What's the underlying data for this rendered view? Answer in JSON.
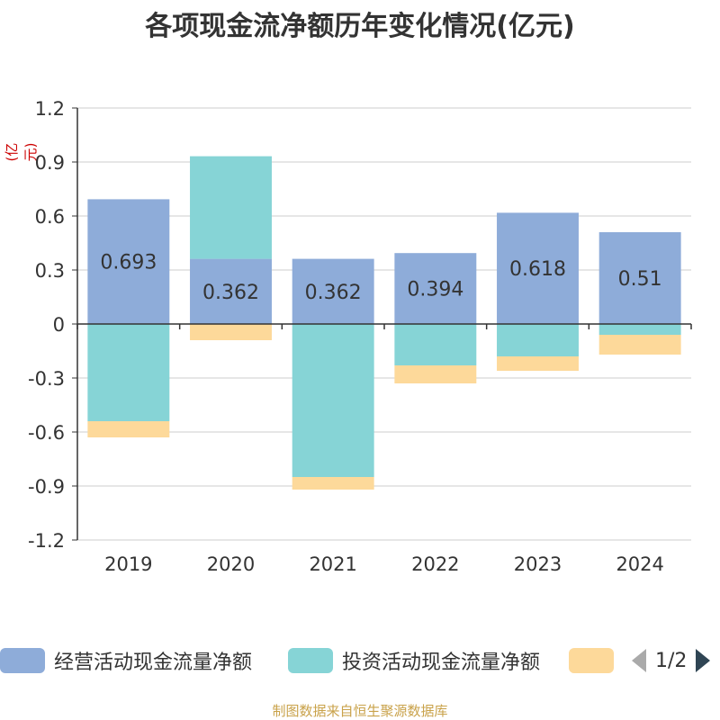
{
  "title": "各项现金流净额历年变化情况(亿元)",
  "colors": {
    "operating": "#8eacd9",
    "investing": "#86d4d6",
    "financing": "#fdd99a",
    "axis": "#333333",
    "grid": "#cccccc",
    "unit_label": "#cc0000",
    "footer": "#c9a24a",
    "pager_disabled": "#aaaaaa",
    "pager_active": "#2f4554"
  },
  "legend": {
    "items": [
      {
        "label": "经营活动现金流量净额",
        "color": "#8eacd9"
      },
      {
        "label": "投资活动现金流量净额",
        "color": "#86d4d6"
      },
      {
        "label": "",
        "color": "#fdd99a"
      }
    ],
    "page_text": "1/2",
    "prev_icon": "triangle-left-icon",
    "next_icon": "triangle-right-icon"
  },
  "footer": "制图数据来自恒生聚源数据库",
  "chart_data": {
    "type": "bar",
    "stacked": true,
    "title": "各项现金流净额历年变化情况(亿元)",
    "ylabel": "(亿元)",
    "categories": [
      "2019",
      "2020",
      "2021",
      "2022",
      "2023",
      "2024"
    ],
    "ylim": [
      -1.2,
      1.2
    ],
    "yticks": [
      "1.2",
      "0.9",
      "0.6",
      "0.3",
      "0",
      "-0.3",
      "-0.6",
      "-0.9",
      "-1.2"
    ],
    "grid": true,
    "legend_position": "bottom",
    "series": [
      {
        "name": "经营活动现金流量净额",
        "values": [
          0.693,
          0.362,
          0.362,
          0.394,
          0.618,
          0.51
        ],
        "labels": [
          "0.693",
          "0.362",
          "0.362",
          "0.394",
          "0.618",
          "0.51"
        ]
      },
      {
        "name": "投资活动现金流量净额",
        "values": [
          -0.54,
          0.57,
          -0.85,
          -0.23,
          -0.18,
          -0.06
        ]
      },
      {
        "values": [
          -0.09,
          -0.09,
          -0.07,
          -0.1,
          -0.08,
          -0.11
        ]
      }
    ]
  }
}
